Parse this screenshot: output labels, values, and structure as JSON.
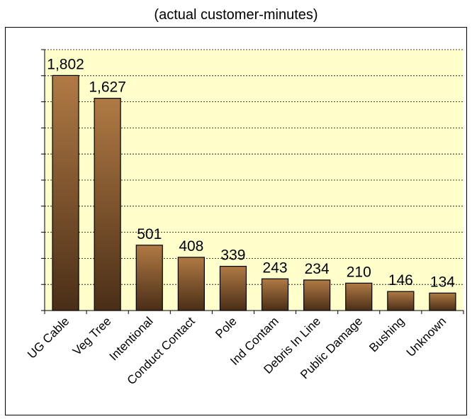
{
  "chart_data": {
    "type": "bar",
    "title": "(actual customer-minutes)",
    "categories": [
      "UG Cable",
      "Veg Tree",
      "Intentional",
      "Conduct Contact",
      "Pole",
      "Ind Contam",
      "Debris In Line",
      "Public Damage",
      "Bushing",
      "Unknown"
    ],
    "values": [
      1802,
      1627,
      501,
      408,
      339,
      243,
      234,
      210,
      146,
      134
    ],
    "value_labels": [
      "1,802",
      "1,627",
      "501",
      "408",
      "339",
      "243",
      "234",
      "210",
      "146",
      "134"
    ],
    "ylim": [
      0,
      2000
    ],
    "y_major_step": 200,
    "grid": true,
    "legend": "none",
    "colors": {
      "plot_background": "#FFFFCC",
      "gridline": "#000000",
      "bar_top": "#B07A44",
      "bar_bottom": "#4A2E17",
      "bar_outline": "#000000"
    }
  }
}
